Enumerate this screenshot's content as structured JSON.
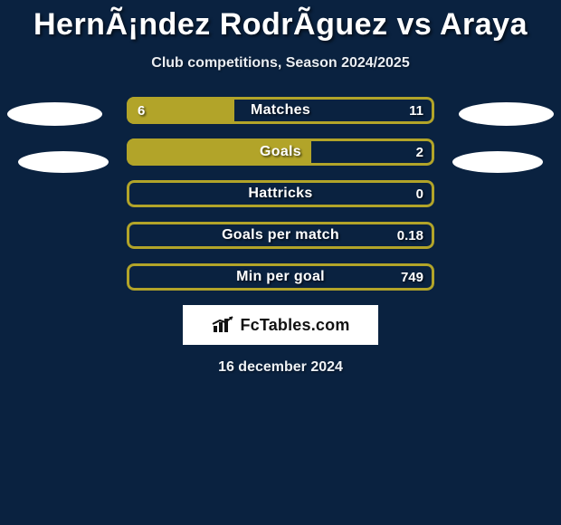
{
  "title": "HernÃ¡ndez RodrÃ­guez vs Araya",
  "subtitle": "Club competitions, Season 2024/2025",
  "date": "16 december 2024",
  "logo_text": "FcTables.com",
  "colors": {
    "background": "#0a2240",
    "bar_fill": "#b2a429",
    "bar_border": "#b2a429",
    "bar_track": "#0a2240",
    "text": "#ffffff",
    "logo_bg": "#ffffff",
    "logo_fg": "#111111"
  },
  "rows": [
    {
      "label": "Matches",
      "left": "6",
      "right": "11",
      "fill_pct": 35
    },
    {
      "label": "Goals",
      "left": "",
      "right": "2",
      "fill_pct": 60
    },
    {
      "label": "Hattricks",
      "left": "",
      "right": "0",
      "fill_pct": 0
    },
    {
      "label": "Goals per match",
      "left": "",
      "right": "0.18",
      "fill_pct": 0
    },
    {
      "label": "Min per goal",
      "left": "",
      "right": "749",
      "fill_pct": 0
    }
  ]
}
